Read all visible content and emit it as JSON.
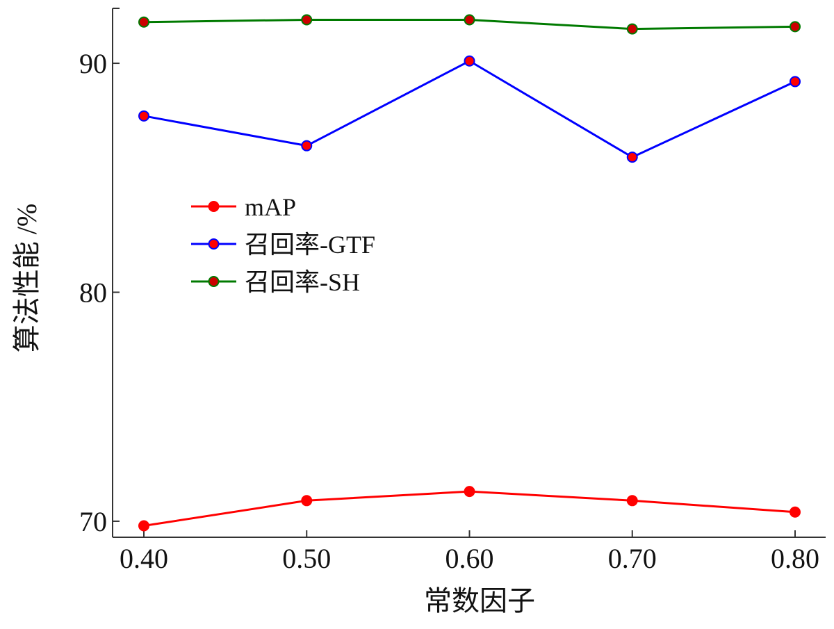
{
  "chart_data": {
    "type": "line",
    "x": [
      0.4,
      0.5,
      0.6,
      0.7,
      0.8
    ],
    "x_tick_labels": [
      "0.40",
      "0.50",
      "0.60",
      "0.70",
      "0.80"
    ],
    "xlim": [
      0.4,
      0.8
    ],
    "ylim": [
      69.3,
      92.4
    ],
    "y_ticks": [
      70,
      80,
      90
    ],
    "y_tick_labels": [
      "70",
      "80",
      "90"
    ],
    "xlabel": "常数因子",
    "ylabel": "算法性能 /%",
    "title": "",
    "grid": false,
    "legend_position": "center-left",
    "series": [
      {
        "name": "mAP",
        "values": [
          69.8,
          70.9,
          71.3,
          70.9,
          70.4
        ],
        "line_color": "#ff0000",
        "marker_color": "#ff0000"
      },
      {
        "name": "召回率-GTF",
        "values": [
          87.7,
          86.4,
          90.1,
          85.9,
          89.2
        ],
        "line_color": "#0000ff",
        "marker_color": "#ff0000"
      },
      {
        "name": "召回率-SH",
        "values": [
          91.8,
          91.9,
          91.9,
          91.5,
          91.6
        ],
        "line_color": "#007a00",
        "marker_color": "#cc0000"
      }
    ]
  }
}
